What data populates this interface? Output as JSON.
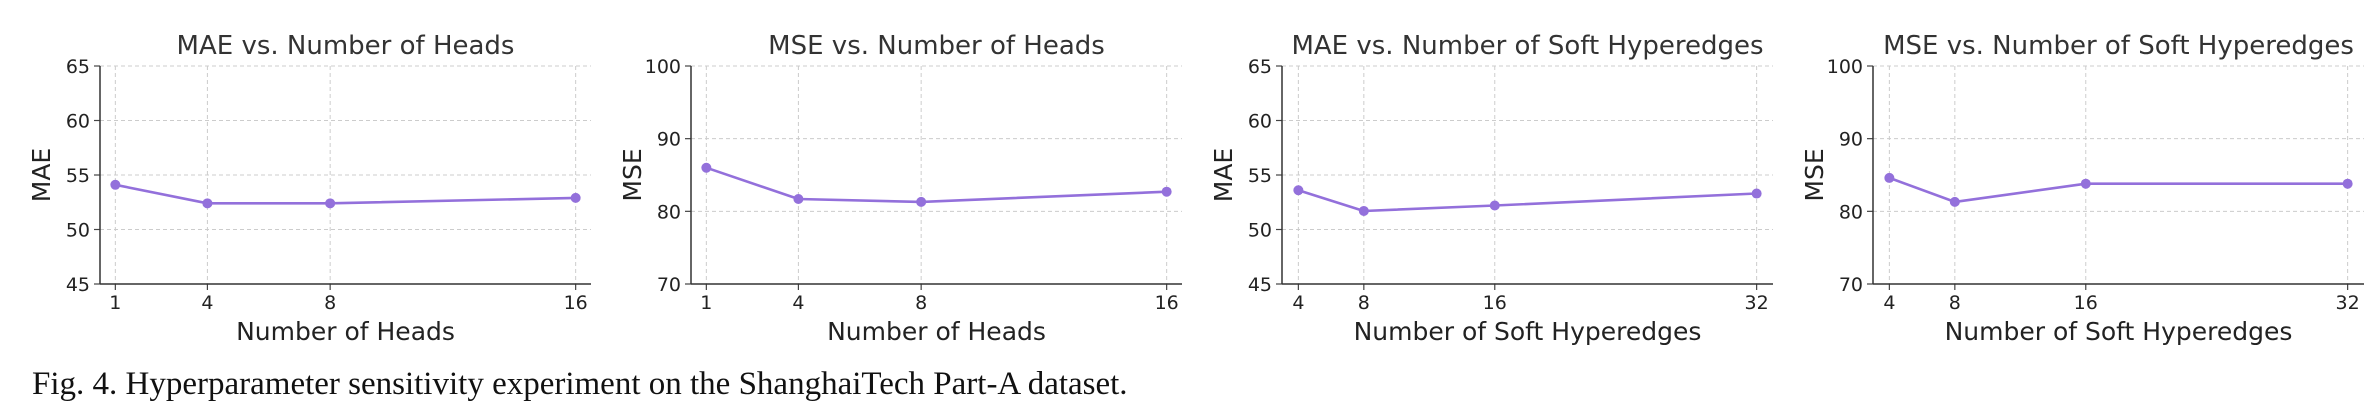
{
  "caption": "Fig. 4.  Hyperparameter sensitivity experiment on the ShanghaiTech Part-A dataset.",
  "line_color": "#9370DB",
  "chart_data": [
    {
      "type": "line",
      "title": "MAE vs. Number of Heads",
      "xlabel": "Number of Heads",
      "ylabel": "MAE",
      "x": [
        1,
        4,
        8,
        16
      ],
      "series": [
        {
          "values": [
            54.1,
            52.4,
            52.4,
            52.9
          ]
        }
      ],
      "xlim": [
        0.5,
        16.5
      ],
      "ylim": [
        45,
        65
      ],
      "xticks": [
        1,
        4,
        8,
        16
      ],
      "yticks": [
        45,
        50,
        55,
        60,
        65
      ],
      "grid": true
    },
    {
      "type": "line",
      "title": "MSE vs. Number of Heads",
      "xlabel": "Number of Heads",
      "ylabel": "MSE",
      "x": [
        1,
        4,
        8,
        16
      ],
      "series": [
        {
          "values": [
            86.0,
            81.7,
            81.3,
            82.7
          ]
        }
      ],
      "xlim": [
        0.5,
        16.5
      ],
      "ylim": [
        70,
        100
      ],
      "xticks": [
        1,
        4,
        8,
        16
      ],
      "yticks": [
        70,
        80,
        90,
        100
      ],
      "grid": true
    },
    {
      "type": "line",
      "title": "MAE vs. Number of Soft Hyperedges",
      "xlabel": "Number of Soft Hyperedges",
      "ylabel": "MAE",
      "x": [
        4,
        8,
        16,
        32
      ],
      "series": [
        {
          "values": [
            53.6,
            51.7,
            52.2,
            53.3
          ]
        }
      ],
      "xlim": [
        3,
        33
      ],
      "ylim": [
        45,
        65
      ],
      "xticks": [
        4,
        8,
        16,
        32
      ],
      "yticks": [
        45,
        50,
        55,
        60,
        65
      ],
      "grid": true
    },
    {
      "type": "line",
      "title": "MSE vs. Number of Soft Hyperedges",
      "xlabel": "Number of Soft Hyperedges",
      "ylabel": "MSE",
      "x": [
        4,
        8,
        16,
        32
      ],
      "series": [
        {
          "values": [
            84.6,
            81.3,
            83.8,
            83.8
          ]
        }
      ],
      "xlim": [
        3,
        33
      ],
      "ylim": [
        70,
        100
      ],
      "xticks": [
        4,
        8,
        16,
        32
      ],
      "yticks": [
        70,
        80,
        90,
        100
      ],
      "grid": true
    }
  ]
}
